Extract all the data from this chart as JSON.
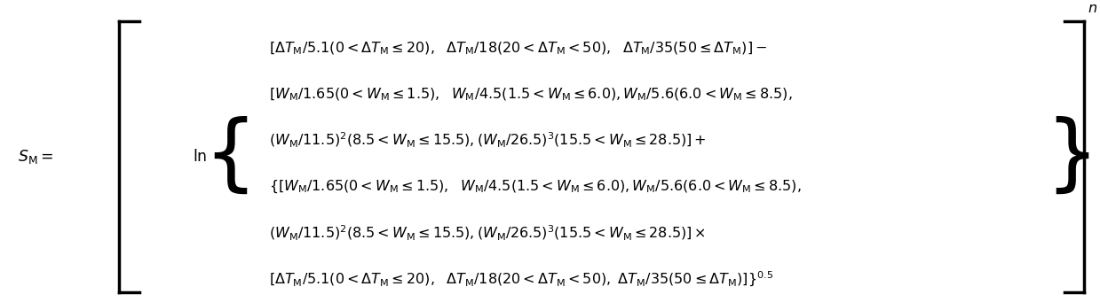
{
  "figsize": [
    12.39,
    3.41
  ],
  "dpi": 100,
  "background_color": "#ffffff",
  "formula_lines": [
    "$[\\Delta T_{\\mathrm{M}}/5.1(0<\\Delta T_{\\mathrm{M}}\\leq 20),\\ \\ \\Delta T_{\\mathrm{M}}/18(20<\\Delta T_{\\mathrm{M}}<50),\\ \\ \\Delta T_{\\mathrm{M}}/35(50\\leq\\Delta T_{\\mathrm{M}})]-$",
    "$[W_{\\mathrm{M}}/1.65(0<W_{\\mathrm{M}}\\leq 1.5),\\ \\ W_{\\mathrm{M}}/4.5(1.5<W_{\\mathrm{M}}\\leq 6.0), W_{\\mathrm{M}}/5.6(6.0<W_{\\mathrm{M}}\\leq 8.5),$",
    "$(W_{\\mathrm{M}}/11.5)^{2}(8.5<W_{\\mathrm{M}}\\leq 15.5),(W_{\\mathrm{M}}/26.5)^{3}(15.5<W_{\\mathrm{M}}\\leq 28.5)]+$",
    "$\\{[W_{\\mathrm{M}}/1.65(0<W_{\\mathrm{M}}\\leq 1.5),\\ \\ W_{\\mathrm{M}}/4.5(1.5<W_{\\mathrm{M}}\\leq 6.0), W_{\\mathrm{M}}/5.6(6.0<W_{\\mathrm{M}}\\leq 8.5),$",
    "$(W_{\\mathrm{M}}/11.5)^{2}(8.5<W_{\\mathrm{M}}\\leq 15.5),(W_{\\mathrm{M}}/26.5)^{3}(15.5<W_{\\mathrm{M}}\\leq 28.5)]\\times$",
    "$[\\Delta T_{\\mathrm{M}}/5.1(0<\\Delta T_{\\mathrm{M}}\\leq 20),\\ \\ \\Delta T_{\\mathrm{M}}/18(20<\\Delta T_{\\mathrm{M}}<50),\\ \\Delta T_{\\mathrm{M}}/35(50\\leq\\Delta T_{\\mathrm{M}})]\\}^{0.5}$"
  ],
  "lhs_label": "$S_{\\mathrm{M}} = $",
  "ln_label": "$\\ln$",
  "fontsize": 11.5,
  "text_color": "#000000"
}
